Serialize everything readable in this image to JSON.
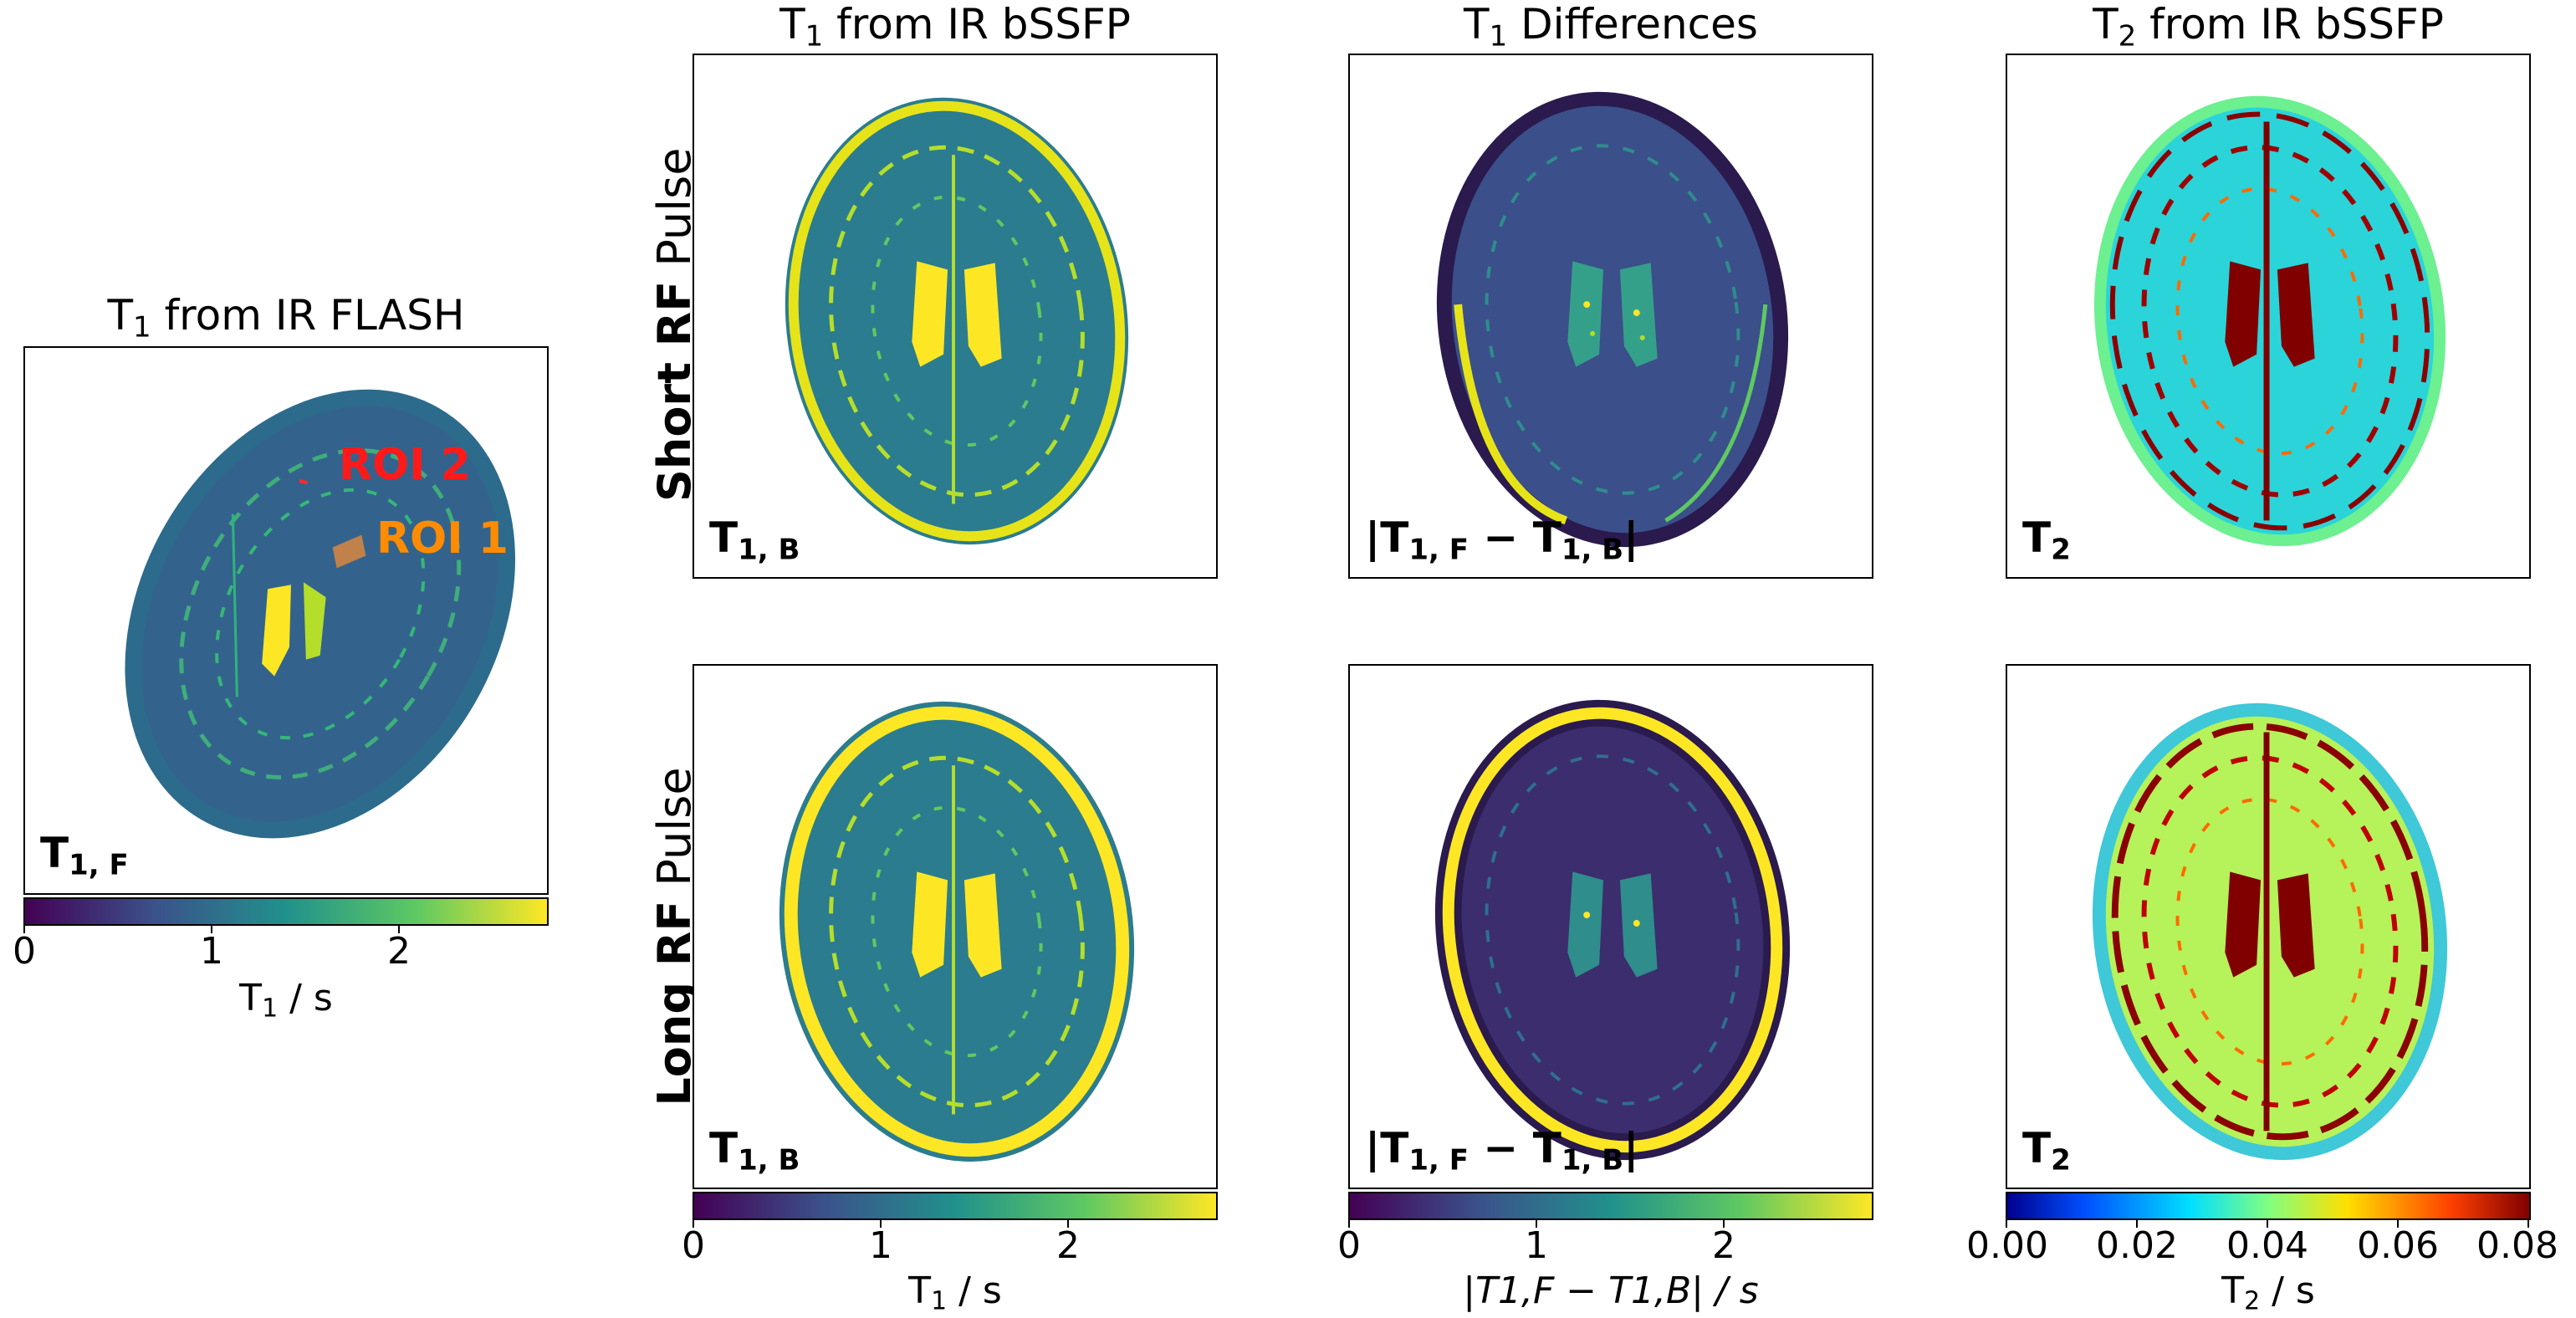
{
  "titles": {
    "flash": {
      "pre": "T",
      "sub": "1",
      "post": " from IR FLASH"
    },
    "bssfp_t1": {
      "pre": "T",
      "sub": "1",
      "post": " from IR bSSFP"
    },
    "diff": {
      "pre": "T",
      "sub": "1",
      "post": " Differences"
    },
    "bssfp_t2": {
      "pre": "T",
      "sub": "2",
      "post": " from IR bSSFP"
    }
  },
  "row_labels": {
    "short": {
      "bold": "Short RF",
      "rest": " Pulse"
    },
    "long": {
      "bold": "Long RF",
      "rest": " Pulse"
    }
  },
  "panel_labels": {
    "t1f": "T1, F",
    "t1b": "T1, B",
    "diff": "|T1, F − T1, B|",
    "t2": "T2"
  },
  "rois": {
    "roi1": {
      "text": "ROI 1",
      "color": "#ff8c00"
    },
    "roi2": {
      "text": "ROI 2",
      "color": "#ff1a1a"
    }
  },
  "colorbars": {
    "flash": {
      "ticks": [
        "0",
        "1",
        "2"
      ],
      "label_pre": "T",
      "label_sub": "1",
      "label_post": " / s",
      "colormap": "viridis"
    },
    "t1": {
      "ticks": [
        "0",
        "1",
        "2"
      ],
      "label_pre": "T",
      "label_sub": "1",
      "label_post": " / s",
      "colormap": "viridis"
    },
    "diff": {
      "ticks": [
        "0",
        "1",
        "2"
      ],
      "label": "|T1,F − T1,B| / s",
      "colormap": "viridis"
    },
    "t2": {
      "ticks": [
        "0.00",
        "0.02",
        "0.04",
        "0.06",
        "0.08"
      ],
      "label_pre": "T",
      "label_sub": "2",
      "label_post": " / s",
      "colormap": "jet"
    }
  },
  "colors": {
    "viridis": [
      "#440154",
      "#3b528b",
      "#21918c",
      "#5ec962",
      "#fde725"
    ],
    "jet": [
      "#00008f",
      "#0050ff",
      "#00dfff",
      "#80ff80",
      "#ffe000",
      "#ff4000",
      "#800000"
    ]
  }
}
